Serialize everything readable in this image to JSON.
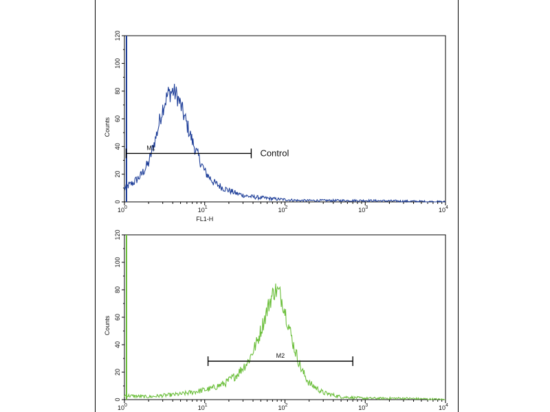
{
  "chart_data": [
    {
      "type": "line",
      "scale_x": "log",
      "xlim": [
        1,
        10000
      ],
      "ylim": [
        0,
        120
      ],
      "xlabel": "FL1-H",
      "ylabel": "Counts",
      "y_ticks": [
        "0",
        "20",
        "40",
        "60",
        "80",
        "100",
        "120"
      ],
      "x_ticks": [
        {
          "base": "10",
          "exp": "0"
        },
        {
          "base": "10",
          "exp": "1"
        },
        {
          "base": "10",
          "exp": "2"
        },
        {
          "base": "10",
          "exp": "3"
        },
        {
          "base": "10",
          "exp": "4"
        }
      ],
      "color": "#1f3f99",
      "grid": false,
      "series": [
        {
          "x": [
            1.0,
            1.3,
            1.6,
            2.0,
            2.5,
            3.0,
            3.5,
            4.0,
            4.5,
            5.0,
            6.0,
            7.0,
            8.0,
            10,
            13,
            17,
            25,
            35,
            50,
            80,
            150,
            300,
            1000,
            10000
          ],
          "values": [
            10,
            14,
            19,
            28,
            48,
            68,
            78,
            80,
            77,
            70,
            56,
            44,
            35,
            22,
            14,
            10,
            6,
            4,
            3,
            2,
            1,
            1,
            1,
            0
          ]
        }
      ],
      "gate": {
        "label": "M1",
        "x_start": 1.05,
        "x_end": 38,
        "y": 35
      },
      "annotation": "Control"
    },
    {
      "type": "line",
      "scale_x": "log",
      "xlim": [
        1,
        10000
      ],
      "ylim": [
        0,
        120
      ],
      "xlabel": "",
      "ylabel": "Counts",
      "y_ticks": [
        "0",
        "20",
        "40",
        "60",
        "80",
        "100",
        "120"
      ],
      "x_ticks": [
        {
          "base": "10",
          "exp": "0"
        },
        {
          "base": "10",
          "exp": "1"
        },
        {
          "base": "10",
          "exp": "2"
        },
        {
          "base": "10",
          "exp": "3"
        },
        {
          "base": "10",
          "exp": "4"
        }
      ],
      "color": "#6cbf3c",
      "grid": false,
      "series": [
        {
          "x": [
            1.0,
            2,
            3,
            5,
            8,
            12,
            18,
            25,
            35,
            45,
            55,
            65,
            75,
            85,
            95,
            110,
            130,
            160,
            200,
            300,
            500,
            1000,
            3000,
            10000
          ],
          "values": [
            3,
            2,
            3,
            4,
            6,
            8,
            12,
            18,
            28,
            42,
            58,
            72,
            80,
            78,
            70,
            55,
            38,
            22,
            12,
            5,
            2,
            1,
            1,
            0
          ]
        }
      ],
      "gate": {
        "label": "M2",
        "x_start": 11,
        "x_end": 700,
        "y": 28
      },
      "annotation": ""
    }
  ]
}
